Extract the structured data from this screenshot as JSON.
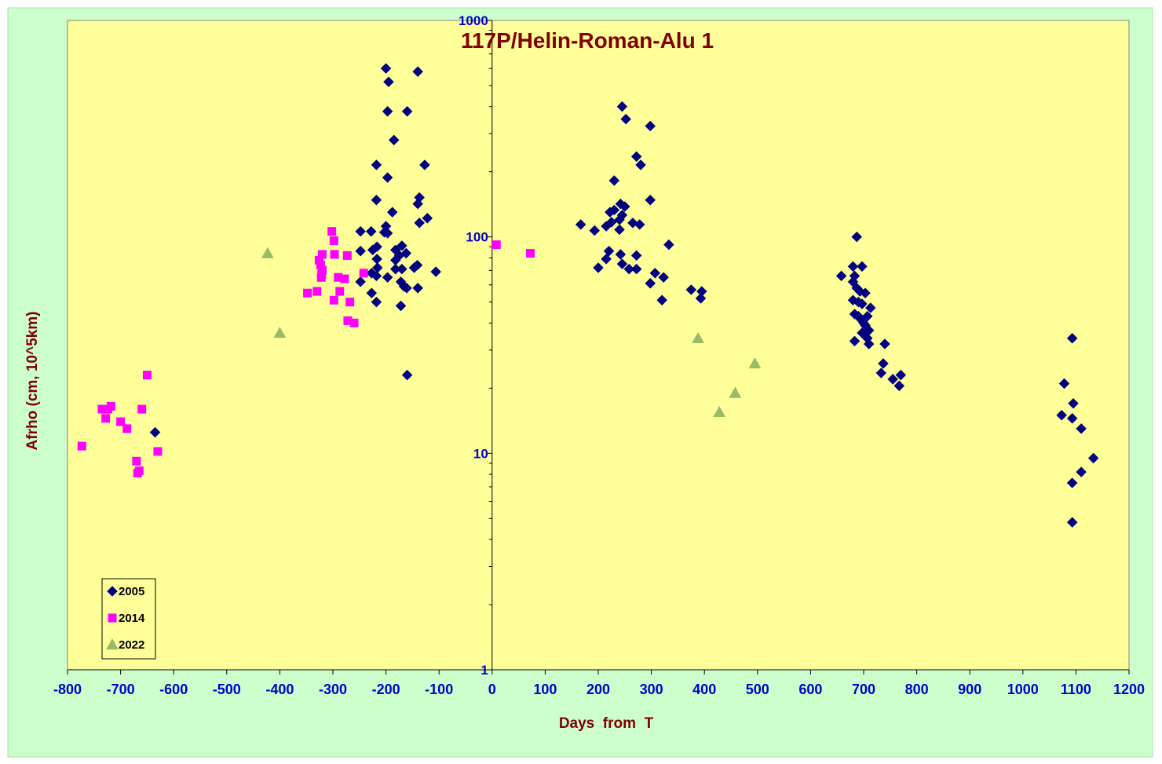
{
  "chart_data": {
    "type": "scatter",
    "title": "117P/Helin-Roman-Alu  1",
    "xlabel": "Days  from  T",
    "ylabel": "Afrho (cm, 10^5km)",
    "xlim": [
      -800,
      1200
    ],
    "ylim": [
      1,
      1000
    ],
    "y_scale": "log",
    "grid": false,
    "legend_position": "bottom-left",
    "x_ticks": [
      "-800",
      "-700",
      "-600",
      "-500",
      "-400",
      "-300",
      "-200",
      "-100",
      "0",
      "100",
      "200",
      "300",
      "400",
      "500",
      "600",
      "700",
      "800",
      "900",
      "1000",
      "1100",
      "1200"
    ],
    "y_ticks": [
      "1",
      "10",
      "100",
      "1000"
    ],
    "colors": {
      "outer_background": "#ccffcc",
      "plot_background": "#ffff99",
      "title": "#800000",
      "axis_label": "#800000",
      "tick_label": "#0000cc",
      "series_2005": "#000080",
      "series_2014": "#ff00ff",
      "series_2022": "#99bb66"
    },
    "series": [
      {
        "name": "2005",
        "marker": "diamond",
        "points": [
          [
            -200,
            600
          ],
          [
            -195,
            520
          ],
          [
            -140,
            580
          ],
          [
            -197,
            380
          ],
          [
            -160,
            380
          ],
          [
            -185,
            280
          ],
          [
            -218,
            215
          ],
          [
            -127,
            215
          ],
          [
            -197,
            188
          ],
          [
            -218,
            148
          ],
          [
            -137,
            152
          ],
          [
            -188,
            130
          ],
          [
            -140,
            142
          ],
          [
            -122,
            122
          ],
          [
            -137,
            116
          ],
          [
            -200,
            112
          ],
          [
            -203,
            105
          ],
          [
            -197,
            104
          ],
          [
            -248,
            106
          ],
          [
            -228,
            106
          ],
          [
            -217,
            90
          ],
          [
            -170,
            91
          ],
          [
            -248,
            86
          ],
          [
            -225,
            87
          ],
          [
            -182,
            87
          ],
          [
            -175,
            82
          ],
          [
            -162,
            84
          ],
          [
            -217,
            79
          ],
          [
            -182,
            78
          ],
          [
            -141,
            74
          ],
          [
            -147,
            72
          ],
          [
            -216,
            72
          ],
          [
            -182,
            71
          ],
          [
            -170,
            71
          ],
          [
            -227,
            68
          ],
          [
            -218,
            66
          ],
          [
            -197,
            65
          ],
          [
            -106,
            69
          ],
          [
            -248,
            62
          ],
          [
            -172,
            62
          ],
          [
            -166,
            59
          ],
          [
            -161,
            58
          ],
          [
            -140,
            58
          ],
          [
            -227,
            55
          ],
          [
            -218,
            50
          ],
          [
            -172,
            48
          ],
          [
            -160,
            23
          ],
          [
            -635,
            12.5
          ],
          [
            245,
            400
          ],
          [
            252,
            350
          ],
          [
            298,
            325
          ],
          [
            272,
            235
          ],
          [
            280,
            215
          ],
          [
            230,
            182
          ],
          [
            298,
            148
          ],
          [
            242,
            142
          ],
          [
            250,
            138
          ],
          [
            230,
            133
          ],
          [
            222,
            130
          ],
          [
            245,
            126
          ],
          [
            240,
            120
          ],
          [
            225,
            117
          ],
          [
            265,
            116
          ],
          [
            278,
            114
          ],
          [
            167,
            114
          ],
          [
            215,
            112
          ],
          [
            240,
            108
          ],
          [
            193,
            107
          ],
          [
            333,
            92
          ],
          [
            220,
            86
          ],
          [
            242,
            83
          ],
          [
            272,
            82
          ],
          [
            215,
            79
          ],
          [
            245,
            75
          ],
          [
            200,
            72
          ],
          [
            258,
            71
          ],
          [
            272,
            71
          ],
          [
            307,
            68
          ],
          [
            323,
            65
          ],
          [
            298,
            61
          ],
          [
            375,
            57
          ],
          [
            395,
            56
          ],
          [
            393,
            52
          ],
          [
            320,
            51
          ],
          [
            687,
            100
          ],
          [
            680,
            73
          ],
          [
            697,
            73
          ],
          [
            658,
            66
          ],
          [
            683,
            66
          ],
          [
            680,
            62
          ],
          [
            687,
            58
          ],
          [
            693,
            56
          ],
          [
            703,
            55
          ],
          [
            680,
            51
          ],
          [
            690,
            50
          ],
          [
            697,
            49
          ],
          [
            713,
            47
          ],
          [
            683,
            44
          ],
          [
            690,
            43
          ],
          [
            707,
            43
          ],
          [
            693,
            42
          ],
          [
            700,
            40
          ],
          [
            703,
            39
          ],
          [
            710,
            37
          ],
          [
            697,
            36
          ],
          [
            707,
            34
          ],
          [
            683,
            33
          ],
          [
            710,
            32
          ],
          [
            740,
            32
          ],
          [
            737,
            26
          ],
          [
            733,
            23.5
          ],
          [
            770,
            23
          ],
          [
            755,
            22
          ],
          [
            767,
            20.5
          ],
          [
            1093,
            34
          ],
          [
            1078,
            21
          ],
          [
            1095,
            17
          ],
          [
            1073,
            15
          ],
          [
            1093,
            14.5
          ],
          [
            1110,
            13
          ],
          [
            1133,
            9.5
          ],
          [
            1110,
            8.2
          ],
          [
            1093,
            7.3
          ],
          [
            1093,
            4.8
          ]
        ]
      },
      {
        "name": "2014",
        "marker": "square",
        "points": [
          [
            -302,
            106
          ],
          [
            -298,
            96
          ],
          [
            -320,
            83
          ],
          [
            -297,
            83
          ],
          [
            -273,
            82
          ],
          [
            -326,
            78
          ],
          [
            -323,
            74
          ],
          [
            -320,
            70
          ],
          [
            -321,
            67
          ],
          [
            -322,
            65
          ],
          [
            -242,
            68
          ],
          [
            -290,
            65
          ],
          [
            -278,
            64
          ],
          [
            -348,
            55
          ],
          [
            -330,
            56
          ],
          [
            -287,
            56
          ],
          [
            -298,
            51
          ],
          [
            -268,
            50
          ],
          [
            -272,
            41
          ],
          [
            -260,
            40
          ],
          [
            -650,
            23
          ],
          [
            -718,
            16.5
          ],
          [
            -724,
            16
          ],
          [
            -735,
            16
          ],
          [
            -660,
            16
          ],
          [
            -728,
            14.5
          ],
          [
            -700,
            14
          ],
          [
            -688,
            13
          ],
          [
            -773,
            10.8
          ],
          [
            -630,
            10.2
          ],
          [
            -670,
            9.2
          ],
          [
            -665,
            8.3
          ],
          [
            -668,
            8.1
          ],
          [
            8,
            92
          ],
          [
            72,
            84
          ]
        ]
      },
      {
        "name": "2022",
        "marker": "triangle",
        "points": [
          [
            -423,
            84
          ],
          [
            -400,
            36
          ],
          [
            388,
            34
          ],
          [
            495,
            26
          ],
          [
            458,
            19
          ],
          [
            428,
            15.5
          ]
        ]
      }
    ]
  }
}
